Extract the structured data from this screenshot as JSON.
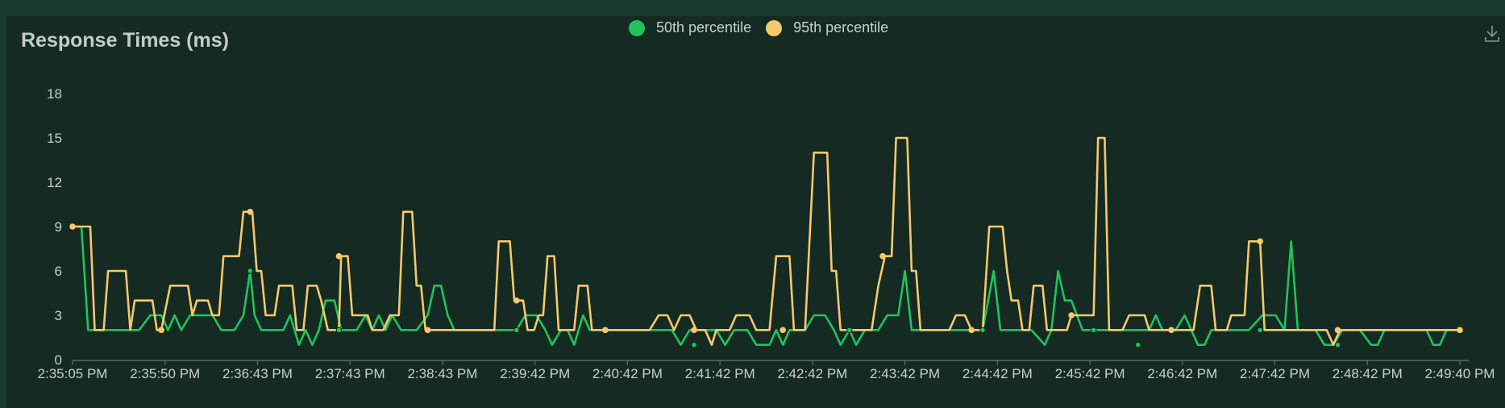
{
  "chart_data": {
    "type": "line",
    "title": "Response Times (ms)",
    "xlabel": "",
    "ylabel": "",
    "ylim": [
      0,
      18
    ],
    "yticks": [
      0,
      3,
      6,
      9,
      12,
      15,
      18
    ],
    "xticks": [
      "2:35:05 PM",
      "2:35:50 PM",
      "2:36:43 PM",
      "2:37:43 PM",
      "2:38:43 PM",
      "2:39:42 PM",
      "2:40:42 PM",
      "2:41:42 PM",
      "2:42:42 PM",
      "2:43:42 PM",
      "2:44:42 PM",
      "2:45:42 PM",
      "2:46:42 PM",
      "2:47:42 PM",
      "2:48:42 PM",
      "2:49:40 PM"
    ],
    "grid": false,
    "legend_position": "top-center",
    "series": [
      {
        "name": "50th percentile",
        "color": "#1ec45c",
        "points": [
          [
            0.0,
            9
          ],
          [
            0.4,
            9
          ],
          [
            0.7,
            2
          ],
          [
            2.3,
            2
          ],
          [
            3.0,
            2
          ],
          [
            3.5,
            3
          ],
          [
            4.0,
            3
          ],
          [
            4.3,
            2
          ],
          [
            4.6,
            3
          ],
          [
            4.9,
            2
          ],
          [
            5.3,
            3
          ],
          [
            6.3,
            3
          ],
          [
            6.7,
            2
          ],
          [
            7.3,
            2
          ],
          [
            7.7,
            3
          ],
          [
            8.0,
            6
          ],
          [
            8.2,
            3
          ],
          [
            8.5,
            2
          ],
          [
            9.5,
            2
          ],
          [
            9.8,
            3
          ],
          [
            10.2,
            1
          ],
          [
            10.5,
            2
          ],
          [
            10.8,
            1
          ],
          [
            11.1,
            2
          ],
          [
            11.4,
            4
          ],
          [
            11.8,
            4
          ],
          [
            12.1,
            2
          ],
          [
            12.8,
            2
          ],
          [
            13.2,
            3
          ],
          [
            13.5,
            2
          ],
          [
            13.8,
            3
          ],
          [
            14.1,
            2
          ],
          [
            14.4,
            3
          ],
          [
            14.8,
            2
          ],
          [
            15.5,
            2
          ],
          [
            16.0,
            3
          ],
          [
            16.3,
            5
          ],
          [
            16.6,
            5
          ],
          [
            16.9,
            3
          ],
          [
            17.2,
            2
          ],
          [
            20.0,
            2
          ],
          [
            20.4,
            3
          ],
          [
            20.9,
            3
          ],
          [
            21.3,
            2
          ],
          [
            21.6,
            1
          ],
          [
            22.0,
            2
          ],
          [
            22.3,
            2
          ],
          [
            22.6,
            1
          ],
          [
            23.0,
            3
          ],
          [
            23.3,
            2
          ],
          [
            27.0,
            2
          ],
          [
            27.4,
            1
          ],
          [
            27.8,
            2
          ],
          [
            29.0,
            2
          ],
          [
            29.4,
            1
          ],
          [
            29.8,
            2
          ],
          [
            30.4,
            2
          ],
          [
            30.8,
            1
          ],
          [
            31.4,
            1
          ],
          [
            31.7,
            2
          ],
          [
            32.0,
            1
          ],
          [
            32.3,
            2
          ],
          [
            33.0,
            2
          ],
          [
            33.4,
            3
          ],
          [
            33.9,
            3
          ],
          [
            34.3,
            2
          ],
          [
            34.6,
            1
          ],
          [
            35.0,
            2
          ],
          [
            35.3,
            1
          ],
          [
            35.7,
            2
          ],
          [
            36.3,
            2
          ],
          [
            36.7,
            3
          ],
          [
            37.2,
            3
          ],
          [
            37.5,
            6
          ],
          [
            37.8,
            2
          ],
          [
            41.0,
            2
          ],
          [
            41.5,
            6
          ],
          [
            41.8,
            2
          ],
          [
            43.2,
            2
          ],
          [
            43.8,
            1
          ],
          [
            44.1,
            2
          ],
          [
            44.4,
            6
          ],
          [
            44.7,
            4
          ],
          [
            45.0,
            4
          ],
          [
            45.5,
            2
          ],
          [
            47.0,
            2
          ],
          [
            47.6,
            2
          ],
          [
            48.5,
            2
          ],
          [
            48.8,
            3
          ],
          [
            49.1,
            2
          ],
          [
            49.7,
            2
          ],
          [
            50.1,
            3
          ],
          [
            50.4,
            2
          ],
          [
            50.7,
            1
          ],
          [
            51.0,
            1
          ],
          [
            51.3,
            2
          ],
          [
            52.0,
            2
          ],
          [
            53.0,
            2
          ],
          [
            53.6,
            3
          ],
          [
            54.2,
            3
          ],
          [
            54.6,
            2
          ],
          [
            54.9,
            8
          ],
          [
            55.2,
            2
          ],
          [
            56.0,
            2
          ],
          [
            56.4,
            1
          ],
          [
            56.8,
            1
          ],
          [
            57.2,
            2
          ],
          [
            58.0,
            2
          ],
          [
            58.5,
            1
          ],
          [
            58.8,
            1
          ],
          [
            59.1,
            2
          ],
          [
            60.0,
            2
          ],
          [
            61.0,
            2
          ],
          [
            61.3,
            1
          ],
          [
            61.6,
            1
          ],
          [
            61.9,
            2
          ],
          [
            62.5,
            2
          ]
        ]
      },
      {
        "name": "95th percentile",
        "color": "#f6c96a",
        "points": [
          [
            0.0,
            9
          ],
          [
            0.8,
            9
          ],
          [
            1.0,
            2
          ],
          [
            1.4,
            2
          ],
          [
            1.6,
            6
          ],
          [
            2.4,
            6
          ],
          [
            2.6,
            2
          ],
          [
            2.8,
            4
          ],
          [
            3.6,
            4
          ],
          [
            3.8,
            2
          ],
          [
            4.0,
            2
          ],
          [
            4.4,
            5
          ],
          [
            5.2,
            5
          ],
          [
            5.4,
            3
          ],
          [
            5.6,
            4
          ],
          [
            6.1,
            4
          ],
          [
            6.3,
            3
          ],
          [
            6.6,
            3
          ],
          [
            6.8,
            7
          ],
          [
            7.5,
            7
          ],
          [
            7.7,
            10
          ],
          [
            8.1,
            10
          ],
          [
            8.3,
            6
          ],
          [
            8.5,
            6
          ],
          [
            8.7,
            3
          ],
          [
            9.1,
            3
          ],
          [
            9.3,
            5
          ],
          [
            9.9,
            5
          ],
          [
            10.1,
            2
          ],
          [
            10.4,
            2
          ],
          [
            10.6,
            5
          ],
          [
            11.0,
            5
          ],
          [
            11.2,
            4
          ],
          [
            11.5,
            2
          ],
          [
            12.0,
            2
          ],
          [
            12.1,
            7
          ],
          [
            12.4,
            7
          ],
          [
            12.6,
            3
          ],
          [
            13.3,
            3
          ],
          [
            13.5,
            2
          ],
          [
            14.0,
            2
          ],
          [
            14.3,
            3
          ],
          [
            14.7,
            3
          ],
          [
            14.9,
            10
          ],
          [
            15.3,
            10
          ],
          [
            15.5,
            5
          ],
          [
            15.7,
            5
          ],
          [
            15.9,
            2
          ],
          [
            16.0,
            2
          ],
          [
            19.0,
            2
          ],
          [
            19.2,
            8
          ],
          [
            19.7,
            8
          ],
          [
            19.9,
            4
          ],
          [
            20.3,
            4
          ],
          [
            20.5,
            2
          ],
          [
            20.8,
            2
          ],
          [
            21.0,
            3
          ],
          [
            21.2,
            3
          ],
          [
            21.4,
            7
          ],
          [
            21.7,
            7
          ],
          [
            21.9,
            2
          ],
          [
            22.6,
            2
          ],
          [
            22.8,
            5
          ],
          [
            23.2,
            5
          ],
          [
            23.4,
            2
          ],
          [
            24.0,
            2
          ],
          [
            26.0,
            2
          ],
          [
            26.4,
            3
          ],
          [
            26.8,
            3
          ],
          [
            27.1,
            2
          ],
          [
            27.4,
            3
          ],
          [
            27.8,
            3
          ],
          [
            28.1,
            2
          ],
          [
            28.5,
            2
          ],
          [
            28.8,
            1
          ],
          [
            29.0,
            2
          ],
          [
            29.6,
            2
          ],
          [
            29.9,
            3
          ],
          [
            30.5,
            3
          ],
          [
            30.8,
            2
          ],
          [
            31.4,
            2
          ],
          [
            31.7,
            7
          ],
          [
            32.3,
            7
          ],
          [
            32.5,
            2
          ],
          [
            32.8,
            2
          ],
          [
            33.0,
            2
          ],
          [
            33.4,
            14
          ],
          [
            34.0,
            14
          ],
          [
            34.2,
            6
          ],
          [
            34.4,
            6
          ],
          [
            34.6,
            2
          ],
          [
            36.0,
            2
          ],
          [
            36.3,
            5
          ],
          [
            36.6,
            7
          ],
          [
            36.9,
            7
          ],
          [
            37.1,
            15
          ],
          [
            37.6,
            15
          ],
          [
            37.8,
            6
          ],
          [
            38.0,
            6
          ],
          [
            38.2,
            2
          ],
          [
            39.5,
            2
          ],
          [
            39.8,
            3
          ],
          [
            40.2,
            3
          ],
          [
            40.5,
            2
          ],
          [
            41.0,
            2
          ],
          [
            41.3,
            9
          ],
          [
            41.9,
            9
          ],
          [
            42.1,
            6
          ],
          [
            42.3,
            4
          ],
          [
            42.6,
            4
          ],
          [
            42.8,
            2
          ],
          [
            43.1,
            2
          ],
          [
            43.3,
            5
          ],
          [
            43.7,
            5
          ],
          [
            43.9,
            2
          ],
          [
            44.8,
            2
          ],
          [
            45.0,
            3
          ],
          [
            46.0,
            3
          ],
          [
            46.2,
            15
          ],
          [
            46.5,
            15
          ],
          [
            46.7,
            2
          ],
          [
            47.3,
            2
          ],
          [
            47.6,
            3
          ],
          [
            48.3,
            3
          ],
          [
            48.5,
            2
          ],
          [
            49.0,
            2
          ],
          [
            49.5,
            2
          ],
          [
            50.5,
            2
          ],
          [
            50.8,
            5
          ],
          [
            51.3,
            5
          ],
          [
            51.5,
            2
          ],
          [
            52.0,
            2
          ],
          [
            52.2,
            3
          ],
          [
            52.8,
            3
          ],
          [
            53.0,
            8
          ],
          [
            53.5,
            8
          ],
          [
            53.7,
            2
          ],
          [
            54.0,
            2
          ],
          [
            56.5,
            2
          ],
          [
            56.8,
            1
          ],
          [
            57.1,
            2
          ],
          [
            58.0,
            2
          ],
          [
            59.0,
            2
          ],
          [
            60.0,
            2
          ],
          [
            61.0,
            2
          ],
          [
            62.0,
            2
          ],
          [
            62.5,
            2
          ]
        ]
      }
    ],
    "markers_50": [
      [
        0.0,
        9
      ],
      [
        8.0,
        6
      ],
      [
        12.0,
        2
      ],
      [
        20.0,
        2
      ],
      [
        28.0,
        1
      ],
      [
        35.0,
        2
      ],
      [
        41.0,
        2
      ],
      [
        46.0,
        2
      ],
      [
        48.0,
        1
      ],
      [
        53.5,
        2
      ],
      [
        57.0,
        1
      ]
    ],
    "markers_95": [
      [
        0.0,
        9
      ],
      [
        4.0,
        2
      ],
      [
        8.0,
        10
      ],
      [
        12.0,
        7
      ],
      [
        16.0,
        2
      ],
      [
        20.0,
        4
      ],
      [
        24.0,
        2
      ],
      [
        28.0,
        2
      ],
      [
        32.0,
        2
      ],
      [
        36.5,
        7
      ],
      [
        40.5,
        2
      ],
      [
        45.0,
        3
      ],
      [
        49.5,
        2
      ],
      [
        53.5,
        8
      ],
      [
        57.0,
        2
      ],
      [
        62.5,
        2
      ]
    ]
  }
}
